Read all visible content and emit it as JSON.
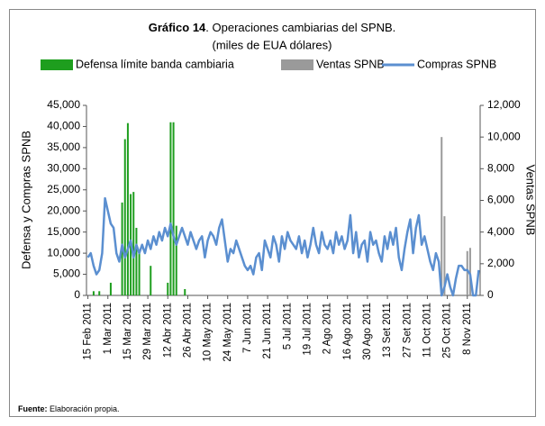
{
  "chart_data": {
    "type": "combo",
    "title_bold": "Gráfico 14",
    "title": ". Operaciones cambiarias del SPNB.",
    "subtitle": "(miles de EUA dólares)",
    "ylabel": "Defensa y Compras SPNB",
    "y2label": "Ventas SPNB",
    "source_label": "Fuente:",
    "source": " Elaboración propia.",
    "categories": [
      "15 Feb 2011",
      null,
      null,
      null,
      null,
      null,
      null,
      "1 Mar 2011",
      null,
      null,
      null,
      null,
      null,
      null,
      "15 Mar 2011",
      null,
      null,
      null,
      null,
      null,
      null,
      "29 Mar 2011",
      null,
      null,
      null,
      null,
      null,
      null,
      "12 Abr 2011",
      null,
      null,
      null,
      null,
      null,
      null,
      "26 Abr 2011",
      null,
      null,
      null,
      null,
      null,
      null,
      "10 May 2011",
      null,
      null,
      null,
      null,
      null,
      null,
      "24 May 2011",
      null,
      null,
      null,
      null,
      null,
      null,
      "7 Jun 2011",
      null,
      null,
      null,
      null,
      null,
      null,
      "21 Jun 2011",
      null,
      null,
      null,
      null,
      null,
      null,
      "5 Jul 2011",
      null,
      null,
      null,
      null,
      null,
      null,
      "19 Jul 2011",
      null,
      null,
      null,
      null,
      null,
      null,
      "2 Ago 2011",
      null,
      null,
      null,
      null,
      null,
      null,
      "16 Ago 2011",
      null,
      null,
      null,
      null,
      null,
      null,
      "30 Ago 2011",
      null,
      null,
      null,
      null,
      null,
      null,
      "13 Set 2011",
      null,
      null,
      null,
      null,
      null,
      null,
      "27 Set 2011",
      null,
      null,
      null,
      null,
      null,
      null,
      "11 Oct 2011",
      null,
      null,
      null,
      null,
      null,
      null,
      "25 Oct 2011",
      null,
      null,
      null,
      null,
      null,
      null,
      "8 Nov 2011",
      null,
      null,
      null,
      null
    ],
    "series": [
      {
        "name": "Defensa límite banda cambiaria",
        "type": "bar",
        "axis": "y",
        "color": "#1e9e1e",
        "values": [
          null,
          null,
          1000,
          null,
          1000,
          null,
          null,
          null,
          3000,
          null,
          null,
          null,
          22000,
          37000,
          40800,
          24000,
          24500,
          16000,
          10000,
          null,
          null,
          null,
          7000,
          null,
          null,
          null,
          null,
          null,
          3000,
          41000,
          41000,
          16500,
          null,
          null,
          1500,
          null,
          null,
          null,
          null,
          null,
          null,
          null,
          null,
          null,
          null,
          null,
          null,
          null,
          null,
          null,
          null,
          null,
          null,
          null,
          null,
          null,
          null,
          null,
          null,
          null,
          null,
          null,
          null,
          null,
          null,
          null,
          null,
          null,
          null,
          null,
          null,
          null,
          null,
          null,
          null,
          null,
          null,
          null,
          null,
          null,
          null,
          null,
          null,
          null,
          null,
          null,
          null,
          null,
          null,
          null,
          null,
          null,
          null,
          null,
          null,
          null,
          null,
          null,
          null,
          null,
          null,
          null,
          null,
          null,
          null,
          null,
          null,
          null,
          null,
          null,
          null,
          null,
          null,
          null,
          null,
          null,
          null,
          null,
          null,
          null,
          null,
          null,
          null,
          null,
          null,
          null,
          null,
          null,
          null,
          null,
          null,
          null,
          null,
          null,
          null,
          null,
          null,
          null
        ]
      },
      {
        "name": "Ventas SPNB",
        "type": "bar",
        "axis": "y2",
        "color": "#9a9a9a",
        "values": [
          null,
          null,
          null,
          null,
          null,
          null,
          null,
          null,
          null,
          null,
          null,
          null,
          null,
          null,
          null,
          null,
          null,
          null,
          null,
          null,
          null,
          null,
          null,
          null,
          null,
          null,
          null,
          null,
          null,
          null,
          null,
          null,
          null,
          null,
          null,
          null,
          null,
          null,
          null,
          null,
          null,
          null,
          null,
          null,
          null,
          null,
          null,
          null,
          null,
          null,
          null,
          null,
          null,
          null,
          null,
          null,
          null,
          null,
          null,
          null,
          null,
          null,
          null,
          null,
          null,
          null,
          null,
          null,
          null,
          null,
          null,
          null,
          null,
          null,
          null,
          null,
          null,
          null,
          null,
          null,
          null,
          null,
          null,
          null,
          null,
          null,
          null,
          null,
          null,
          null,
          null,
          null,
          null,
          null,
          null,
          null,
          null,
          null,
          null,
          null,
          null,
          null,
          null,
          null,
          null,
          null,
          null,
          null,
          null,
          null,
          null,
          null,
          null,
          null,
          null,
          null,
          null,
          null,
          null,
          null,
          null,
          null,
          null,
          null,
          10000,
          5000,
          null,
          null,
          null,
          null,
          null,
          null,
          null,
          2800,
          3000,
          null,
          null,
          null
        ]
      },
      {
        "name": "Compras SPNB",
        "type": "line",
        "axis": "y",
        "color": "#5b8fd0",
        "values": [
          9000,
          10000,
          7000,
          5000,
          6000,
          10000,
          23000,
          20000,
          17000,
          16000,
          10000,
          8000,
          12000,
          9000,
          11000,
          13000,
          9000,
          12000,
          10000,
          12000,
          10000,
          13000,
          11000,
          14000,
          12000,
          15000,
          13000,
          16000,
          14000,
          17000,
          14000,
          12000,
          14000,
          16000,
          14000,
          12000,
          15000,
          13000,
          11000,
          13000,
          14000,
          9000,
          13000,
          15000,
          14000,
          12000,
          16000,
          18000,
          13000,
          8000,
          11000,
          10000,
          13000,
          11000,
          9000,
          7000,
          6000,
          7000,
          5000,
          9000,
          10000,
          6000,
          13000,
          11000,
          9000,
          14000,
          12000,
          8000,
          14000,
          11000,
          15000,
          13000,
          12000,
          11000,
          14000,
          10000,
          13000,
          9000,
          12000,
          16000,
          12000,
          10000,
          15000,
          12000,
          11000,
          13000,
          10000,
          15000,
          12000,
          14000,
          11000,
          13000,
          19000,
          10000,
          15000,
          9000,
          12000,
          13000,
          8000,
          15000,
          12000,
          13000,
          10000,
          8000,
          14000,
          11000,
          15000,
          12000,
          16000,
          9000,
          6000,
          11000,
          15000,
          18000,
          10000,
          16000,
          19000,
          12000,
          14000,
          11000,
          8000,
          6000,
          10000,
          8000,
          0,
          2000,
          5000,
          2000,
          0,
          4000,
          7000,
          7000,
          6000,
          6000,
          5000,
          0,
          0,
          6000
        ]
      }
    ],
    "ylim": [
      0,
      45000
    ],
    "yticks": [
      0,
      {
        "value": 5000,
        "label": "5,000"
      },
      {
        "value": 10000,
        "label": "10,000"
      },
      {
        "value": 15000,
        "label": "15,000"
      },
      {
        "value": 20000,
        "label": "20,000"
      },
      {
        "value": 25000,
        "label": "25,000"
      },
      {
        "value": 30000,
        "label": "30,000"
      },
      {
        "value": 35000,
        "label": "35,000"
      },
      {
        "value": 40000,
        "label": "40,000"
      },
      {
        "value": 45000,
        "label": "45,000"
      }
    ],
    "y2lim": [
      0,
      12000
    ],
    "y2ticks": [
      0,
      {
        "value": 2000,
        "label": "2,000"
      },
      {
        "value": 4000,
        "label": "4,000"
      },
      {
        "value": 6000,
        "label": "6,000"
      },
      {
        "value": 8000,
        "label": "8,000"
      },
      {
        "value": 10000,
        "label": "10,000"
      },
      {
        "value": 12000,
        "label": "12,000"
      }
    ],
    "grid": false
  }
}
